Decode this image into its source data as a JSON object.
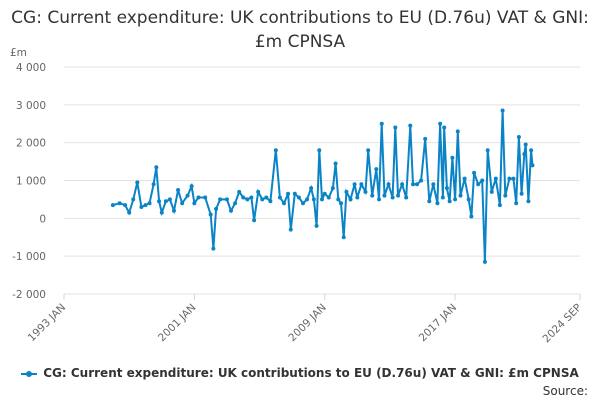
{
  "chart_data": {
    "type": "line",
    "title": "CG: Current expenditure: UK contributions to EU (D.76u) VAT & GNI: £m CPNSA",
    "ylabel": "£m",
    "xlabel": "",
    "ylim": [
      -2000,
      4000
    ],
    "yticks": [
      "-2 000",
      "-1 000",
      "0",
      "1 000",
      "2 000",
      "3 000",
      "4 000"
    ],
    "ytick_values": [
      -2000,
      -1000,
      0,
      1000,
      2000,
      3000,
      4000
    ],
    "xlim": [
      "1993-01",
      "2024-09"
    ],
    "xticks": [
      "1993 JAN",
      "2001 JAN",
      "2009 JAN",
      "2017 JAN",
      "2024 SEP"
    ],
    "xtick_values": [
      "1993-01",
      "2001-01",
      "2009-01",
      "2017-01",
      "2024-09"
    ],
    "grid": "horizontal",
    "legend": "bottom",
    "color": "#0a84c6",
    "series": [
      {
        "name": "CG: Current expenditure: UK contributions to EU (D.76u) VAT & GNI: £m CPNSA",
        "points": [
          [
            "1996-01",
            350
          ],
          [
            "1996-06",
            400
          ],
          [
            "1996-10",
            350
          ],
          [
            "1997-01",
            150
          ],
          [
            "1997-04",
            500
          ],
          [
            "1997-07",
            950
          ],
          [
            "1997-10",
            300
          ],
          [
            "1998-01",
            350
          ],
          [
            "1998-04",
            400
          ],
          [
            "1998-07",
            900
          ],
          [
            "1998-09",
            1350
          ],
          [
            "1998-11",
            450
          ],
          [
            "1999-01",
            150
          ],
          [
            "1999-04",
            450
          ],
          [
            "1999-07",
            500
          ],
          [
            "1999-10",
            200
          ],
          [
            "2000-01",
            750
          ],
          [
            "2000-04",
            400
          ],
          [
            "2000-08",
            600
          ],
          [
            "2000-11",
            850
          ],
          [
            "2001-01",
            400
          ],
          [
            "2001-04",
            550
          ],
          [
            "2001-09",
            550
          ],
          [
            "2002-01",
            100
          ],
          [
            "2002-03",
            -800
          ],
          [
            "2002-05",
            250
          ],
          [
            "2002-08",
            500
          ],
          [
            "2003-01",
            500
          ],
          [
            "2003-04",
            200
          ],
          [
            "2003-07",
            400
          ],
          [
            "2003-10",
            700
          ],
          [
            "2004-01",
            550
          ],
          [
            "2004-04",
            500
          ],
          [
            "2004-07",
            550
          ],
          [
            "2004-09",
            -50
          ],
          [
            "2004-12",
            700
          ],
          [
            "2005-03",
            500
          ],
          [
            "2005-06",
            550
          ],
          [
            "2005-09",
            450
          ],
          [
            "2006-01",
            1800
          ],
          [
            "2006-04",
            550
          ],
          [
            "2006-07",
            400
          ],
          [
            "2006-10",
            650
          ],
          [
            "2006-12",
            -300
          ],
          [
            "2007-03",
            650
          ],
          [
            "2007-06",
            550
          ],
          [
            "2007-09",
            400
          ],
          [
            "2007-12",
            500
          ],
          [
            "2008-03",
            800
          ],
          [
            "2008-05",
            500
          ],
          [
            "2008-07",
            -200
          ],
          [
            "2008-09",
            1800
          ],
          [
            "2008-11",
            500
          ],
          [
            "2009-01",
            650
          ],
          [
            "2009-04",
            550
          ],
          [
            "2009-07",
            800
          ],
          [
            "2009-09",
            1450
          ],
          [
            "2009-11",
            500
          ],
          [
            "2010-01",
            400
          ],
          [
            "2010-03",
            -500
          ],
          [
            "2010-05",
            700
          ],
          [
            "2010-08",
            500
          ],
          [
            "2010-11",
            900
          ],
          [
            "2011-01",
            550
          ],
          [
            "2011-04",
            900
          ],
          [
            "2011-07",
            700
          ],
          [
            "2011-09",
            1800
          ],
          [
            "2011-12",
            600
          ],
          [
            "2012-03",
            1300
          ],
          [
            "2012-05",
            500
          ],
          [
            "2012-07",
            2500
          ],
          [
            "2012-09",
            600
          ],
          [
            "2012-12",
            900
          ],
          [
            "2013-03",
            550
          ],
          [
            "2013-05",
            2400
          ],
          [
            "2013-07",
            600
          ],
          [
            "2013-10",
            900
          ],
          [
            "2014-01",
            550
          ],
          [
            "2014-04",
            2450
          ],
          [
            "2014-06",
            900
          ],
          [
            "2014-09",
            900
          ],
          [
            "2014-12",
            1000
          ],
          [
            "2015-03",
            2100
          ],
          [
            "2015-06",
            450
          ],
          [
            "2015-09",
            900
          ],
          [
            "2015-12",
            400
          ],
          [
            "2016-02",
            2500
          ],
          [
            "2016-04",
            550
          ],
          [
            "2016-05",
            2400
          ],
          [
            "2016-07",
            800
          ],
          [
            "2016-09",
            450
          ],
          [
            "2016-11",
            1600
          ],
          [
            "2017-01",
            500
          ],
          [
            "2017-03",
            2300
          ],
          [
            "2017-05",
            600
          ],
          [
            "2017-08",
            1050
          ],
          [
            "2017-11",
            500
          ],
          [
            "2018-01",
            50
          ],
          [
            "2018-03",
            1200
          ],
          [
            "2018-06",
            900
          ],
          [
            "2018-09",
            1000
          ],
          [
            "2018-11",
            -1150
          ],
          [
            "2019-01",
            1800
          ],
          [
            "2019-04",
            700
          ],
          [
            "2019-07",
            1050
          ],
          [
            "2019-10",
            350
          ],
          [
            "2019-12",
            2850
          ],
          [
            "2020-02",
            600
          ],
          [
            "2020-05",
            1050
          ],
          [
            "2020-08",
            1050
          ],
          [
            "2020-10",
            400
          ],
          [
            "2020-12",
            2150
          ],
          [
            "2021-02",
            650
          ],
          [
            "2021-04",
            1700
          ],
          [
            "2021-05",
            1950
          ],
          [
            "2021-07",
            450
          ],
          [
            "2021-09",
            1800
          ],
          [
            "2021-10",
            1400
          ]
        ]
      }
    ]
  },
  "legend_label": "CG: Current expenditure: UK contributions to EU (D.76u) VAT & GNI: £m CPNSA",
  "source_label": "Source:"
}
